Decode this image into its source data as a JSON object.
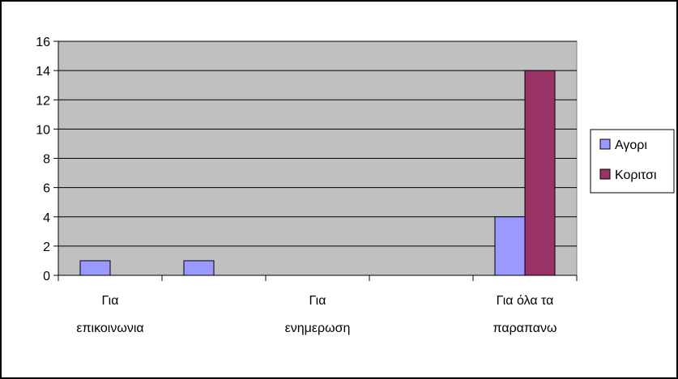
{
  "chart_data": {
    "type": "bar",
    "categories": [
      [
        "Για",
        "επικοινωνια"
      ],
      [
        "",
        ""
      ],
      [
        "Για",
        "ενημερωση"
      ],
      [
        "",
        ""
      ],
      [
        "Για όλα τα",
        "παραπανω"
      ]
    ],
    "series": [
      {
        "name": "Αγορι",
        "values": [
          1,
          1,
          0,
          0,
          4
        ],
        "color": "#9999ff"
      },
      {
        "name": "Κοριτσι",
        "values": [
          0,
          0,
          0,
          0,
          14
        ],
        "color": "#993366"
      }
    ],
    "ylim": [
      0,
      16
    ],
    "yticks": [
      "0",
      "2",
      "4",
      "6",
      "8",
      "10",
      "12",
      "14",
      "16"
    ],
    "grid": true,
    "plot_background": "#c0c0c0",
    "legend_position": "right"
  }
}
